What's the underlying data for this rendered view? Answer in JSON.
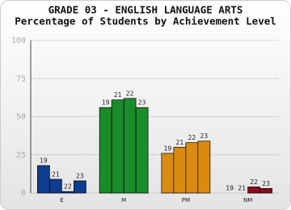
{
  "chart_data": {
    "type": "bar",
    "title": "GRADE 03 - ENGLISH LANGUAGE ARTS",
    "subtitle": "Percentage of Students by Achievement Level",
    "categories": [
      "E",
      "M",
      "PM",
      "NM"
    ],
    "colors": [
      "#0b3d91",
      "#1a8c2a",
      "#d98a0f",
      "#8b0a1e"
    ],
    "series": [
      {
        "name": "19",
        "values": [
          18,
          56,
          26,
          0
        ]
      },
      {
        "name": "21",
        "values": [
          9,
          61,
          30,
          0
        ]
      },
      {
        "name": "22",
        "values": [
          1,
          62,
          33,
          4
        ]
      },
      {
        "name": "23",
        "values": [
          8,
          56,
          34,
          3
        ]
      }
    ],
    "ylim": [
      0,
      100
    ],
    "yticks": [
      0,
      25,
      50,
      75,
      100
    ],
    "grid": true
  }
}
